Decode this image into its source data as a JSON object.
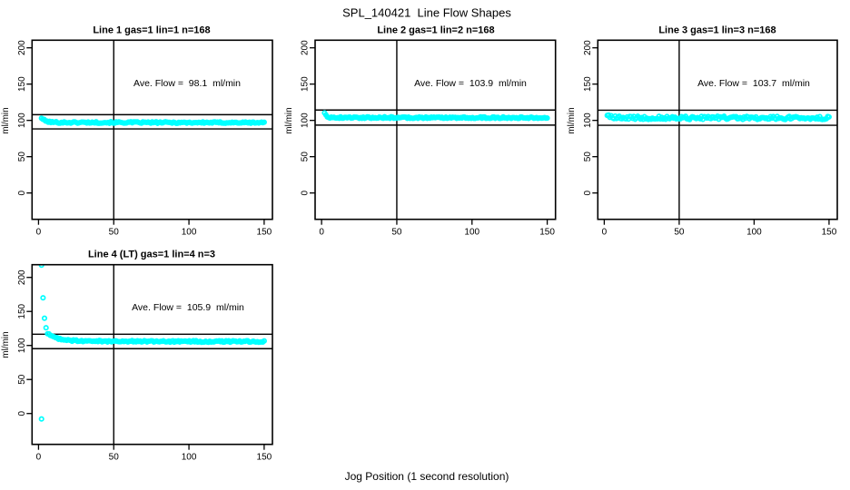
{
  "chart_data": {
    "type": "scatter",
    "title": "SPL_140421  Line Flow Shapes",
    "xlabel": "Jog Position (1 second resolution)",
    "ylabel": "ml/min",
    "x_ticks": [
      0,
      50,
      100,
      150
    ],
    "y_ticks": [
      0,
      50,
      100,
      150,
      200
    ],
    "x_range": [
      0,
      150
    ],
    "y_range": [
      0,
      200
    ],
    "vline_x": 50,
    "grid": "off",
    "legend": "none",
    "point_color": "#00ffff",
    "line_color": "#000000",
    "panels": [
      {
        "title": "Line 1 gas=1 lin=1 n=168",
        "annotation": "Ave. Flow =  98.1  ml/min",
        "ave_flow": 98.1,
        "n": 168,
        "ref_upper": 107.9,
        "ref_lower": 88.3,
        "band": {
          "x_start": 2,
          "x_end": 150,
          "n": 168,
          "y_start": 103.5,
          "y_settle": 97.2,
          "tau": 2.5,
          "noise": 1.1,
          "drift": -0.002,
          "seed": 101
        },
        "outliers": []
      },
      {
        "title": "Line 2 gas=1 lin=2 n=168",
        "annotation": "Ave. Flow =  103.9  ml/min",
        "ave_flow": 103.9,
        "n": 168,
        "ref_upper": 114.3,
        "ref_lower": 93.5,
        "band": {
          "x_start": 2,
          "x_end": 150,
          "n": 168,
          "y_start": 110.8,
          "y_settle": 103.9,
          "tau": 1.3,
          "noise": 1.1,
          "drift": -0.001,
          "seed": 202
        },
        "outliers": []
      },
      {
        "title": "Line 3 gas=1 lin=3 n=168",
        "annotation": "Ave. Flow =  103.7  ml/min",
        "ave_flow": 103.7,
        "n": 168,
        "ref_upper": 114.1,
        "ref_lower": 93.3,
        "band": {
          "x_start": 2,
          "x_end": 150,
          "n": 168,
          "y_start": 107.5,
          "y_settle": 103.6,
          "tau": 2.0,
          "noise": 2.3,
          "drift": -0.002,
          "seed": 303
        },
        "outliers": []
      },
      {
        "title": "Line 4 (LT) gas=1 lin=4 n=3",
        "annotation": "Ave. Flow =  105.9  ml/min",
        "ave_flow": 105.9,
        "n": 3,
        "ref_upper": 116.5,
        "ref_lower": 95.3,
        "band": {
          "x_start": 6,
          "x_end": 150,
          "n": 160,
          "y_start": 117.5,
          "y_settle": 106.3,
          "tau": 7,
          "noise": 1.2,
          "drift": -0.004,
          "seed": 404
        },
        "outliers": [
          [
            2,
            218
          ],
          [
            2,
            -8
          ],
          [
            3,
            170
          ],
          [
            4,
            140
          ],
          [
            5,
            126
          ]
        ]
      }
    ]
  }
}
